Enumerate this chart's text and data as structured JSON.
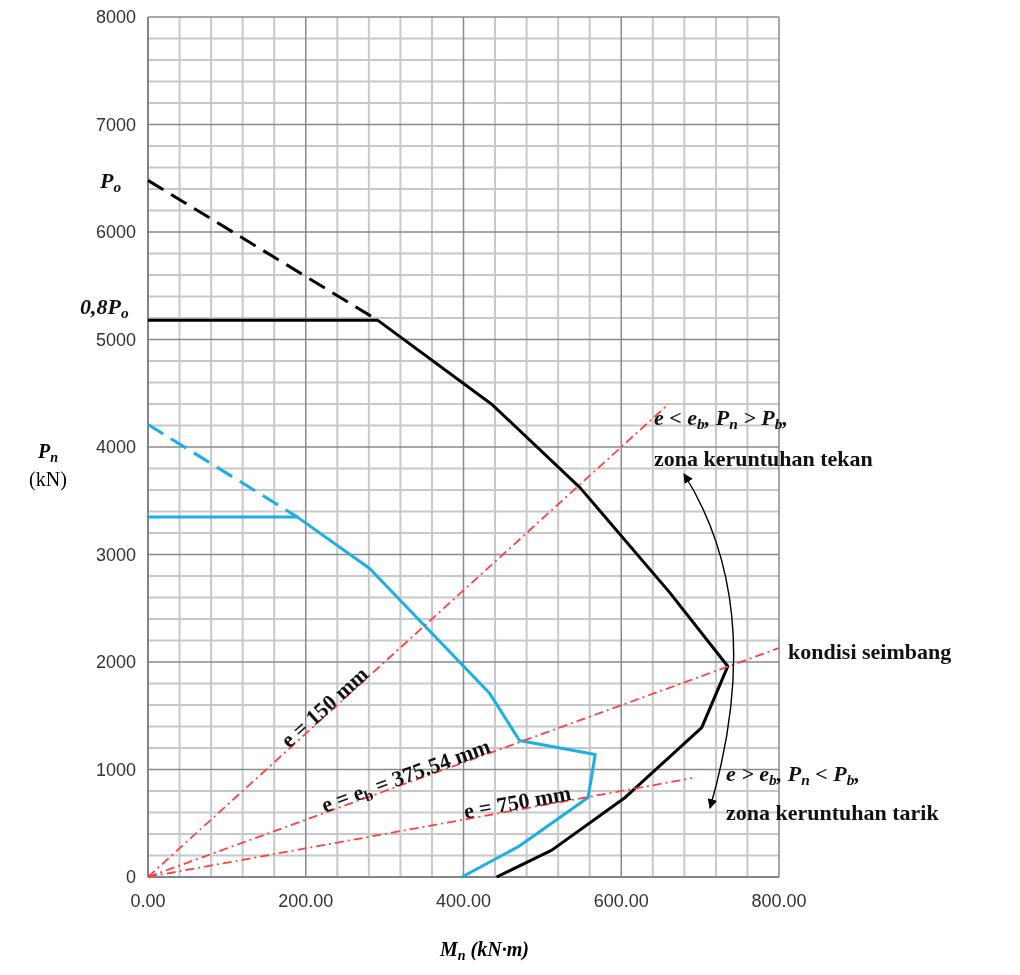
{
  "chart_data": {
    "type": "line",
    "xlabel": "M$_{n}$ (kN·m)",
    "ylabel": "P$_{n}$ (kN)",
    "xlim": [
      0,
      800
    ],
    "ylim": [
      0,
      8000
    ],
    "xticks": [
      {
        "value": 0,
        "label": "0.00"
      },
      {
        "value": 200,
        "label": "200.00"
      },
      {
        "value": 400,
        "label": "400.00"
      },
      {
        "value": 600,
        "label": "600.00"
      },
      {
        "value": 800,
        "label": "800.00"
      }
    ],
    "yticks": [
      0,
      1000,
      2000,
      3000,
      4000,
      5000,
      6000,
      7000,
      8000
    ],
    "grid": true,
    "marker": "none",
    "series": [
      {
        "color": "#000000",
        "line_style": "dashed",
        "x": [
          0,
          291
        ],
        "values": [
          6480,
          5180
        ]
      },
      {
        "color": "#000000",
        "line_style": "solid",
        "x": [
          0,
          291,
          437,
          548,
          661,
          735,
          702,
          605,
          512,
          442
        ],
        "values": [
          5180,
          5180,
          4390,
          3620,
          2650,
          1960,
          1390,
          740,
          250,
          0
        ]
      },
      {
        "color": "#1aafe6",
        "line_style": "dashed",
        "x": [
          0,
          189
        ],
        "values": [
          4210,
          3350
        ]
      },
      {
        "color": "#1aafe6",
        "line_style": "solid",
        "x": [
          0,
          189,
          281,
          433,
          471,
          567,
          558,
          469,
          398
        ],
        "values": [
          3350,
          3350,
          2870,
          1710,
          1270,
          1140,
          740,
          280,
          0
        ]
      },
      {
        "color": "#ff4040",
        "line_style": "dashdot",
        "x": [
          0,
          660
        ],
        "values": [
          0,
          4400
        ]
      },
      {
        "color": "#ff4040",
        "line_style": "dashdot",
        "x": [
          0,
          800
        ],
        "values": [
          0,
          2130
        ]
      },
      {
        "color": "#ff4040",
        "line_style": "dashdot",
        "x": [
          0,
          690
        ],
        "values": [
          0,
          920
        ]
      }
    ],
    "annotations": [
      {
        "text": "P$_{o}$",
        "x": 0,
        "y": 6480
      },
      {
        "text": "0,8P$_{o}$",
        "x": 0,
        "y": 5180
      },
      {
        "text": "e = 150 mm",
        "x": 230,
        "y": 1530
      },
      {
        "text": "e = e$_{b}$ = 375.54 mm",
        "x": 330,
        "y": 880
      },
      {
        "text": "e = 750 mm",
        "x": 470,
        "y": 630
      },
      "e < e$_{b}$, P$_{n}$ > P$_{b}$,",
      "zona keruntuhan tekan",
      "kondisi seimbang",
      "e > e$_{b}$, P$_{n}$ < P$_{b}$,",
      "zona keruntuhan tarik"
    ]
  }
}
